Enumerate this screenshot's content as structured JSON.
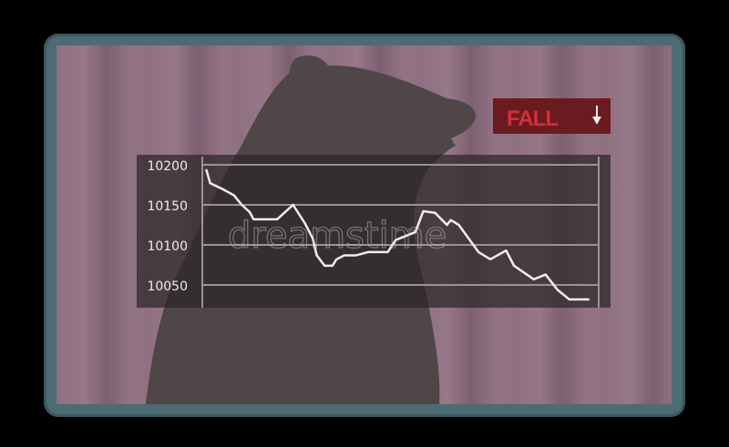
{
  "colors": {
    "background": "#000000",
    "frame": "#4d6b73",
    "screen": "#8f7182",
    "bear": "#4e4647",
    "panel": "#2c2528",
    "line": "#f2eef0",
    "badge": "#6b1a1f",
    "badge_text": "#d32f36"
  },
  "badge": {
    "label": "FALL",
    "icon": "arrow-down-icon"
  },
  "watermark": "dreamstime",
  "chart_data": {
    "type": "line",
    "title": "",
    "xlabel": "",
    "ylabel": "",
    "yticks": [
      "10200",
      "10150",
      "10100",
      "10050"
    ],
    "ylim": [
      10025,
      10210
    ],
    "xlim": [
      0,
      100
    ],
    "grid": true,
    "series": [
      {
        "x": [
          1,
          2,
          5,
          8,
          10,
          12,
          13,
          19,
          23,
          26,
          28,
          29,
          31,
          33,
          34,
          36,
          39,
          42,
          47,
          49,
          54,
          56,
          59,
          60,
          62,
          63,
          65,
          70,
          73,
          77,
          79,
          84,
          87,
          90,
          93,
          98
        ],
        "values": [
          10194,
          10177,
          10170,
          10162,
          10150,
          10141,
          10132,
          10132,
          10150,
          10127,
          10108,
          10087,
          10074,
          10074,
          10082,
          10087,
          10087,
          10091,
          10091,
          10106,
          10116,
          10142,
          10140,
          10135,
          10125,
          10131,
          10125,
          10091,
          10082,
          10093,
          10074,
          10057,
          10063,
          10044,
          10032,
          10032
        ]
      }
    ]
  }
}
